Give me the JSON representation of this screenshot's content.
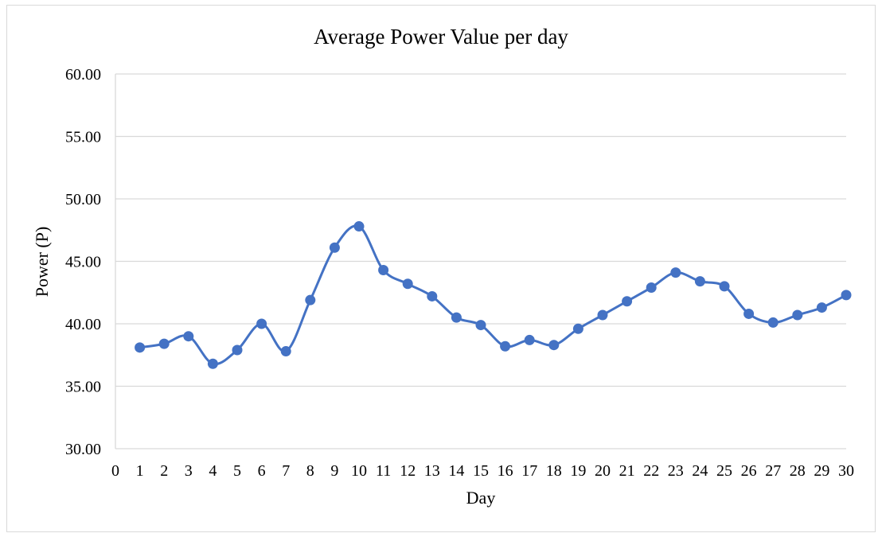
{
  "chart_data": {
    "type": "line",
    "title": "Average Power Value per day",
    "xlabel": "Day",
    "ylabel": "Power (P)",
    "xlim": [
      0,
      30
    ],
    "ylim": [
      30,
      60
    ],
    "x_ticks": [
      "0",
      "1",
      "2",
      "3",
      "4",
      "5",
      "6",
      "7",
      "8",
      "9",
      "10",
      "11",
      "12",
      "13",
      "14",
      "15",
      "16",
      "17",
      "18",
      "19",
      "20",
      "21",
      "22",
      "23",
      "24",
      "25",
      "26",
      "27",
      "28",
      "29",
      "30"
    ],
    "y_ticks": [
      "30.00",
      "35.00",
      "40.00",
      "45.00",
      "50.00",
      "55.00",
      "60.00"
    ],
    "grid": "horizontal",
    "smooth": true,
    "series": [
      {
        "color": "#4472c4",
        "x": [
          1,
          2,
          3,
          4,
          5,
          6,
          7,
          8,
          9,
          10,
          11,
          12,
          13,
          14,
          15,
          16,
          17,
          18,
          19,
          20,
          21,
          22,
          23,
          24,
          25,
          26,
          27,
          28,
          29,
          30
        ],
        "values": [
          38.1,
          38.4,
          39.0,
          36.8,
          37.9,
          40.0,
          37.8,
          41.9,
          46.1,
          47.8,
          44.3,
          43.2,
          42.2,
          40.5,
          39.9,
          38.2,
          38.7,
          38.3,
          39.6,
          40.7,
          41.8,
          42.9,
          44.1,
          43.4,
          43.0,
          40.8,
          40.1,
          40.7,
          41.3,
          42.3
        ]
      }
    ],
    "colors": {
      "grid": "#d9d9d9",
      "axis": "#d9d9d9",
      "text": "#000000"
    }
  }
}
